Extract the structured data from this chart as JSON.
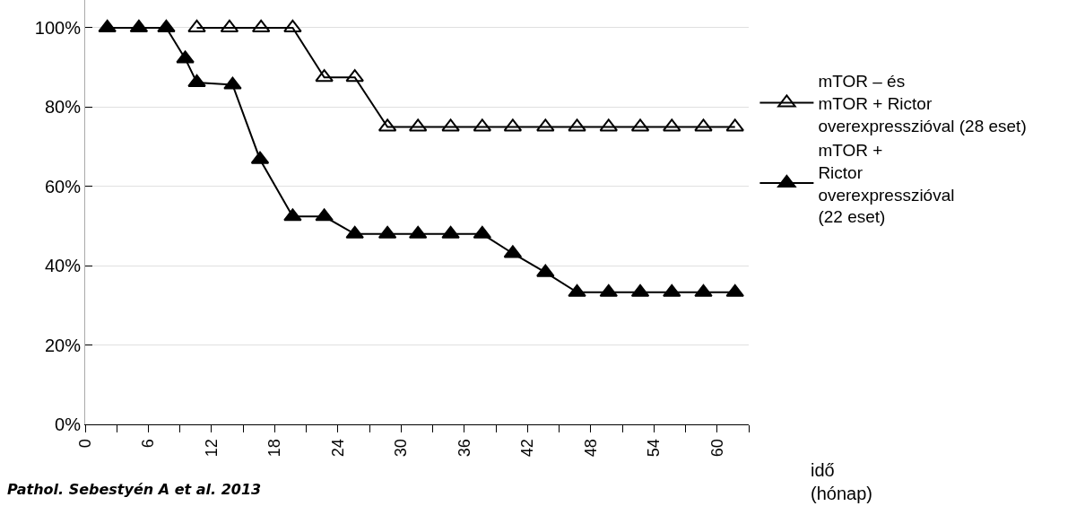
{
  "chart_data": {
    "type": "line",
    "xlabel": "idő\n(hónap)",
    "annotations": [
      "Pathol. Sebestyén A et al. 2013"
    ],
    "series": [
      {
        "name": "mTOR – és\nmTOR + Rictor\noverexpresszióval (28 eset)",
        "color": "#000000",
        "marker": "triangle-open",
        "x": [
          10.6,
          13.7,
          16.7,
          19.7,
          22.7,
          25.6,
          28.7,
          31.6,
          34.7,
          37.7,
          40.6,
          43.7,
          46.7,
          49.7,
          52.7,
          55.7,
          58.7,
          61.7
        ],
        "values": [
          100,
          100,
          100,
          100,
          87.5,
          87.5,
          75,
          75,
          75,
          75,
          75,
          75,
          75,
          75,
          75,
          75,
          75,
          75
        ]
      },
      {
        "name": "mTOR +\nRictor\noverexpresszióval\n(22 eset)",
        "color": "#000000",
        "marker": "triangle",
        "x": [
          2.1,
          5.1,
          7.7,
          9.5,
          10.6,
          14.0,
          16.6,
          19.7,
          22.7,
          25.6,
          28.7,
          31.6,
          34.7,
          37.7,
          40.6,
          43.7,
          46.7,
          49.7,
          52.7,
          55.7,
          58.7,
          61.7
        ],
        "values": [
          100,
          100,
          100,
          92.2,
          86.2,
          85.6,
          66.8,
          52.4,
          52.4,
          48,
          48,
          48,
          48,
          48,
          43.1,
          38.3,
          33.3,
          33.3,
          33.3,
          33.3,
          33.3,
          33.3
        ]
      }
    ],
    "xlim": [
      0,
      63
    ],
    "xticks": [
      0,
      {
        "value": 3,
        "label": null
      },
      6,
      {
        "value": 9,
        "label": null
      },
      12,
      {
        "value": 15,
        "label": null
      },
      18,
      {
        "value": 21,
        "label": null
      },
      24,
      {
        "value": 27,
        "label": null
      },
      30,
      {
        "value": 33,
        "label": null
      },
      36,
      {
        "value": 39,
        "label": null
      },
      42,
      {
        "value": 45,
        "label": null
      },
      48,
      {
        "value": 51,
        "label": null
      },
      54,
      {
        "value": 57,
        "label": null
      },
      60,
      {
        "value": 63,
        "label": null
      }
    ],
    "ylim": [
      0,
      107
    ],
    "yticks": [
      {
        "value": 0,
        "label": "0%"
      },
      {
        "value": 20,
        "label": "20%"
      },
      {
        "value": 40,
        "label": "40%"
      },
      {
        "value": 60,
        "label": "60%"
      },
      {
        "value": 80,
        "label": "80%"
      },
      {
        "value": 100,
        "label": "100%"
      }
    ],
    "grid": "y",
    "legend": "right",
    "line_style": "solid"
  }
}
